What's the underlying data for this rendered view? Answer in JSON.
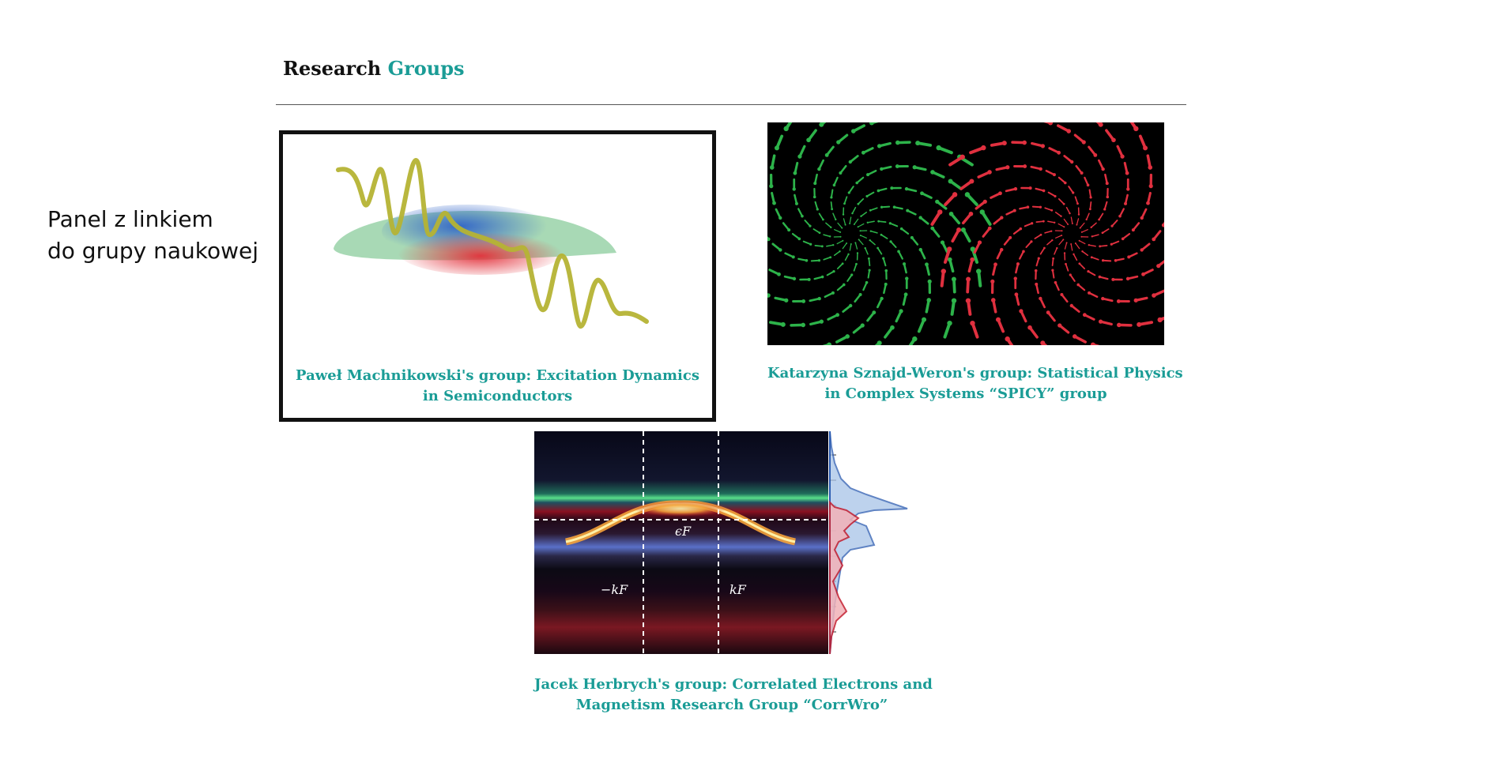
{
  "annotation": {
    "lines": [
      "Panel z linkiem",
      "do grupy naukowej"
    ]
  },
  "section": {
    "title_main": "Research",
    "title_accent": "Groups"
  },
  "colors": {
    "accent": "#1a9c96",
    "card_border": "#111111"
  },
  "groups": [
    {
      "title_lines": [
        "Paweł Machnikowski's group: Excitation Dynamics",
        "in Semiconductors"
      ],
      "image_icon": "excitation-dynamics-illustration"
    },
    {
      "title_lines": [
        "Katarzyna Sznajd-Weron's group: Statistical Physics",
        "in Complex Systems “SPICY” group"
      ],
      "image_icon": "spiral-arrows-illustration"
    },
    {
      "title_lines": [
        "Jacek Herbrych's group: Correlated Electrons and",
        "Magnetism Research Group “CorrWro”"
      ],
      "image_icon": "spectral-function-plot",
      "plot_labels": {
        "fermi_energy": "ϵF",
        "minus_kf": "−kF",
        "kf": "kF"
      }
    }
  ]
}
